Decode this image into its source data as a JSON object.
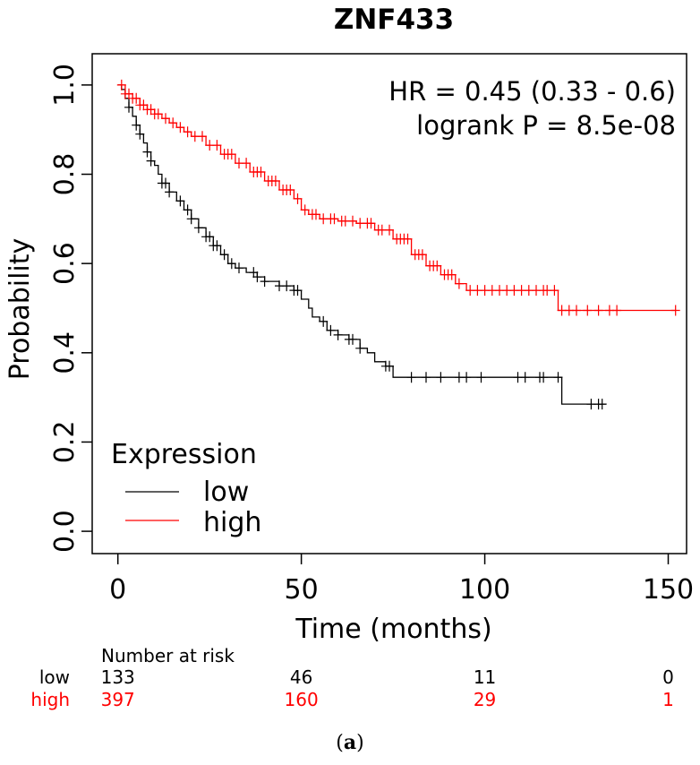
{
  "chart_data": {
    "type": "line",
    "title": "ZNF433",
    "xlabel": "Time (months)",
    "ylabel": "Probability",
    "xlim": [
      -7,
      155
    ],
    "ylim": [
      -0.05,
      1.07
    ],
    "xticks": [
      0,
      50,
      100,
      150
    ],
    "yticks": [
      0.0,
      0.2,
      0.4,
      0.6,
      0.8,
      1.0
    ],
    "ytick_labels": [
      "0.0",
      "0.2",
      "0.4",
      "0.6",
      "0.8",
      "1.0"
    ],
    "annotations": [
      "HR = 0.45 (0.33 - 0.6)",
      "logrank P = 8.5e-08"
    ],
    "legend": {
      "title": "Expression",
      "position": "bottom-left"
    },
    "series": [
      {
        "name": "low",
        "color": "#000000",
        "x": [
          0,
          1,
          2,
          3,
          4,
          5,
          6,
          7,
          8,
          9,
          10,
          11,
          12,
          14,
          16,
          18,
          20,
          22,
          24,
          26,
          28,
          30,
          32,
          35,
          38,
          40,
          44,
          48,
          50,
          52,
          53,
          55,
          57,
          60,
          63,
          66,
          68,
          70,
          73,
          75,
          90,
          110,
          120,
          121,
          133
        ],
        "y": [
          1.0,
          0.99,
          0.97,
          0.95,
          0.93,
          0.91,
          0.89,
          0.87,
          0.85,
          0.83,
          0.82,
          0.8,
          0.78,
          0.76,
          0.74,
          0.72,
          0.7,
          0.68,
          0.66,
          0.64,
          0.62,
          0.6,
          0.59,
          0.58,
          0.57,
          0.56,
          0.55,
          0.54,
          0.52,
          0.5,
          0.48,
          0.47,
          0.45,
          0.44,
          0.43,
          0.41,
          0.4,
          0.38,
          0.37,
          0.345,
          0.345,
          0.345,
          0.345,
          0.285,
          0.285
        ],
        "censor_x": [
          3,
          5,
          6,
          8,
          9,
          12,
          13,
          14,
          17,
          19,
          20,
          22,
          24,
          25,
          26,
          27,
          29,
          31,
          33,
          37,
          38,
          40,
          44,
          46,
          48,
          49,
          56,
          58,
          60,
          63,
          64,
          66,
          73,
          74,
          80,
          84,
          88,
          93,
          95,
          99,
          109,
          111,
          115,
          116,
          120,
          129,
          131,
          132
        ]
      },
      {
        "name": "high",
        "color": "#ff0000",
        "x": [
          0,
          2,
          4,
          6,
          8,
          10,
          12,
          14,
          16,
          18,
          20,
          24,
          28,
          32,
          36,
          40,
          44,
          48,
          50,
          52,
          55,
          60,
          65,
          70,
          75,
          80,
          84,
          88,
          92,
          95,
          118,
          120,
          152
        ],
        "y": [
          1.0,
          0.98,
          0.97,
          0.955,
          0.945,
          0.935,
          0.925,
          0.915,
          0.905,
          0.895,
          0.885,
          0.865,
          0.845,
          0.825,
          0.805,
          0.785,
          0.765,
          0.745,
          0.72,
          0.71,
          0.7,
          0.695,
          0.69,
          0.675,
          0.655,
          0.62,
          0.595,
          0.575,
          0.555,
          0.54,
          0.54,
          0.495,
          0.495
        ],
        "censor_x": [
          1,
          2,
          3,
          4,
          5,
          6,
          7,
          8,
          9,
          10,
          11,
          13,
          15,
          17,
          19,
          21,
          23,
          25,
          27,
          29,
          30,
          31,
          33,
          35,
          37,
          38,
          39,
          41,
          42,
          43,
          45,
          46,
          47,
          49,
          51,
          53,
          54,
          56,
          58,
          59,
          61,
          62,
          64,
          66,
          68,
          69,
          71,
          72,
          74,
          76,
          77,
          78,
          79,
          81,
          82,
          83,
          85,
          86,
          87,
          89,
          90,
          91,
          93,
          96,
          98,
          100,
          102,
          104,
          106,
          108,
          110,
          112,
          114,
          116,
          117,
          119,
          121,
          123,
          125,
          128,
          131,
          134,
          136,
          152
        ]
      }
    ]
  },
  "risk_table": {
    "header": "Number at risk",
    "x": [
      0,
      50,
      100,
      150
    ],
    "rows": [
      {
        "label": "low",
        "color": "#000000",
        "values": [
          "133",
          "46",
          "11",
          "0"
        ]
      },
      {
        "label": "high",
        "color": "#ff0000",
        "values": [
          "397",
          "160",
          "29",
          "1"
        ]
      }
    ]
  },
  "caption": {
    "open": "(",
    "letter": "a",
    "close": ")"
  }
}
